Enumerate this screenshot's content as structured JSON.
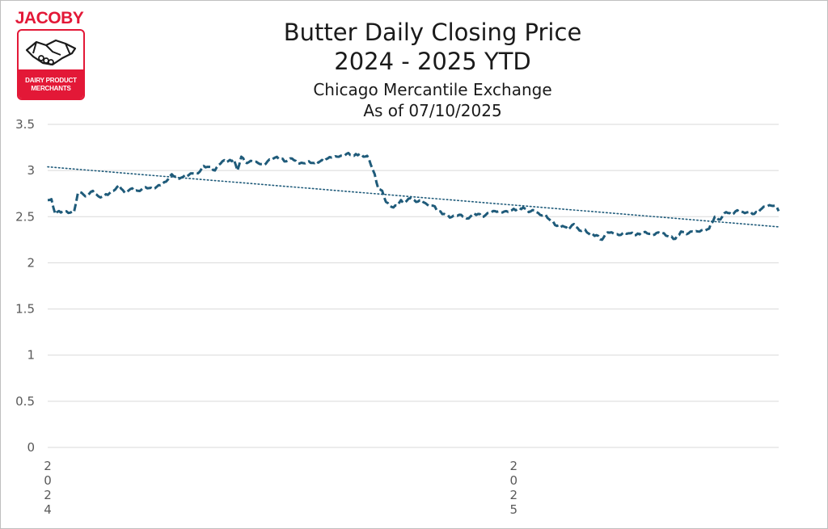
{
  "logo": {
    "brand": "JACOBY",
    "line1": "DAIRY PRODUCT",
    "line2": "MERCHANTS",
    "icon": "handshake-icon"
  },
  "colors": {
    "series": "#1f5b7a",
    "grid": "#d9d9d9",
    "brand": "#e31837"
  },
  "chart_data": {
    "type": "line",
    "title": "Butter Daily Closing Price",
    "title_line2": "2024 - 2025 YTD",
    "subtitle": "Chicago Mercantile Exchange",
    "subtitle_line2": "As of 07/10/2025",
    "xlabel": "",
    "ylabel": "",
    "ylim": [
      0,
      3.5
    ],
    "yticks": [
      "0",
      "0.5",
      "1",
      "1.5",
      "2",
      "2.5",
      "3",
      "3.5"
    ],
    "xticks": [
      {
        "label": "2024",
        "index": 0
      },
      {
        "label": "2025",
        "index": 248
      }
    ],
    "grid": true,
    "legend": "none",
    "series": [
      {
        "style": "dashed",
        "trendline": {
          "style": "dotted",
          "start": 3.04,
          "end": 2.39
        },
        "keyframes": [
          [
            0,
            2.68
          ],
          [
            2,
            2.69
          ],
          [
            3,
            2.6
          ],
          [
            4,
            2.53
          ],
          [
            5,
            2.55
          ],
          [
            8,
            2.56
          ],
          [
            11,
            2.54
          ],
          [
            14,
            2.55
          ],
          [
            16,
            2.75
          ],
          [
            18,
            2.76
          ],
          [
            20,
            2.72
          ],
          [
            24,
            2.78
          ],
          [
            27,
            2.72
          ],
          [
            30,
            2.72
          ],
          [
            35,
            2.78
          ],
          [
            38,
            2.84
          ],
          [
            41,
            2.76
          ],
          [
            44,
            2.8
          ],
          [
            48,
            2.78
          ],
          [
            52,
            2.82
          ],
          [
            56,
            2.8
          ],
          [
            60,
            2.84
          ],
          [
            63,
            2.88
          ],
          [
            66,
            2.96
          ],
          [
            69,
            2.92
          ],
          [
            72,
            2.93
          ],
          [
            75,
            2.95
          ],
          [
            77,
            2.97
          ],
          [
            80,
            2.97
          ],
          [
            83,
            3.05
          ],
          [
            86,
            3.04
          ],
          [
            89,
            3.0
          ],
          [
            91,
            3.06
          ],
          [
            93,
            3.1
          ],
          [
            96,
            3.1
          ],
          [
            99,
            3.12
          ],
          [
            101,
            3.0
          ],
          [
            103,
            3.15
          ],
          [
            106,
            3.08
          ],
          [
            109,
            3.1
          ],
          [
            112,
            3.08
          ],
          [
            115,
            3.06
          ],
          [
            118,
            3.12
          ],
          [
            121,
            3.14
          ],
          [
            124,
            3.13
          ],
          [
            127,
            3.1
          ],
          [
            130,
            3.13
          ],
          [
            133,
            3.08
          ],
          [
            136,
            3.08
          ],
          [
            139,
            3.1
          ],
          [
            142,
            3.08
          ],
          [
            145,
            3.1
          ],
          [
            148,
            3.12
          ],
          [
            151,
            3.14
          ],
          [
            154,
            3.15
          ],
          [
            157,
            3.16
          ],
          [
            160,
            3.19
          ],
          [
            163,
            3.16
          ],
          [
            166,
            3.18
          ],
          [
            168,
            3.15
          ],
          [
            170,
            3.16
          ],
          [
            172,
            3.06
          ],
          [
            174,
            2.96
          ],
          [
            176,
            2.8
          ],
          [
            178,
            2.78
          ],
          [
            180,
            2.66
          ],
          [
            182,
            2.62
          ],
          [
            184,
            2.6
          ],
          [
            186,
            2.62
          ],
          [
            188,
            2.68
          ],
          [
            190,
            2.65
          ],
          [
            193,
            2.7
          ],
          [
            196,
            2.66
          ],
          [
            199,
            2.68
          ],
          [
            202,
            2.63
          ],
          [
            205,
            2.62
          ],
          [
            208,
            2.56
          ],
          [
            211,
            2.53
          ],
          [
            214,
            2.49
          ],
          [
            217,
            2.51
          ],
          [
            220,
            2.52
          ],
          [
            223,
            2.48
          ],
          [
            226,
            2.52
          ],
          [
            229,
            2.53
          ],
          [
            232,
            2.5
          ],
          [
            235,
            2.54
          ],
          [
            238,
            2.56
          ],
          [
            241,
            2.55
          ],
          [
            244,
            2.56
          ],
          [
            247,
            2.57
          ],
          [
            250,
            2.58
          ],
          [
            253,
            2.6
          ],
          [
            256,
            2.55
          ],
          [
            259,
            2.57
          ],
          [
            262,
            2.52
          ],
          [
            265,
            2.52
          ],
          [
            268,
            2.45
          ],
          [
            271,
            2.4
          ],
          [
            274,
            2.4
          ],
          [
            277,
            2.36
          ],
          [
            280,
            2.42
          ],
          [
            283,
            2.35
          ],
          [
            286,
            2.36
          ],
          [
            289,
            2.3
          ],
          [
            292,
            2.3
          ],
          [
            295,
            2.25
          ],
          [
            298,
            2.33
          ],
          [
            301,
            2.32
          ],
          [
            304,
            2.3
          ],
          [
            307,
            2.33
          ],
          [
            310,
            2.32
          ],
          [
            313,
            2.3
          ],
          [
            316,
            2.33
          ],
          [
            319,
            2.32
          ],
          [
            322,
            2.3
          ],
          [
            325,
            2.33
          ],
          [
            328,
            2.32
          ],
          [
            331,
            2.28
          ],
          [
            334,
            2.26
          ],
          [
            337,
            2.34
          ],
          [
            340,
            2.31
          ],
          [
            343,
            2.34
          ],
          [
            346,
            2.34
          ],
          [
            349,
            2.36
          ],
          [
            352,
            2.37
          ],
          [
            355,
            2.5
          ],
          [
            358,
            2.47
          ],
          [
            361,
            2.55
          ],
          [
            364,
            2.52
          ],
          [
            367,
            2.57
          ],
          [
            370,
            2.55
          ],
          [
            373,
            2.55
          ],
          [
            376,
            2.53
          ],
          [
            379,
            2.57
          ],
          [
            382,
            2.61
          ],
          [
            385,
            2.62
          ],
          [
            387,
            2.62
          ],
          [
            389,
            2.56
          ]
        ]
      }
    ]
  }
}
